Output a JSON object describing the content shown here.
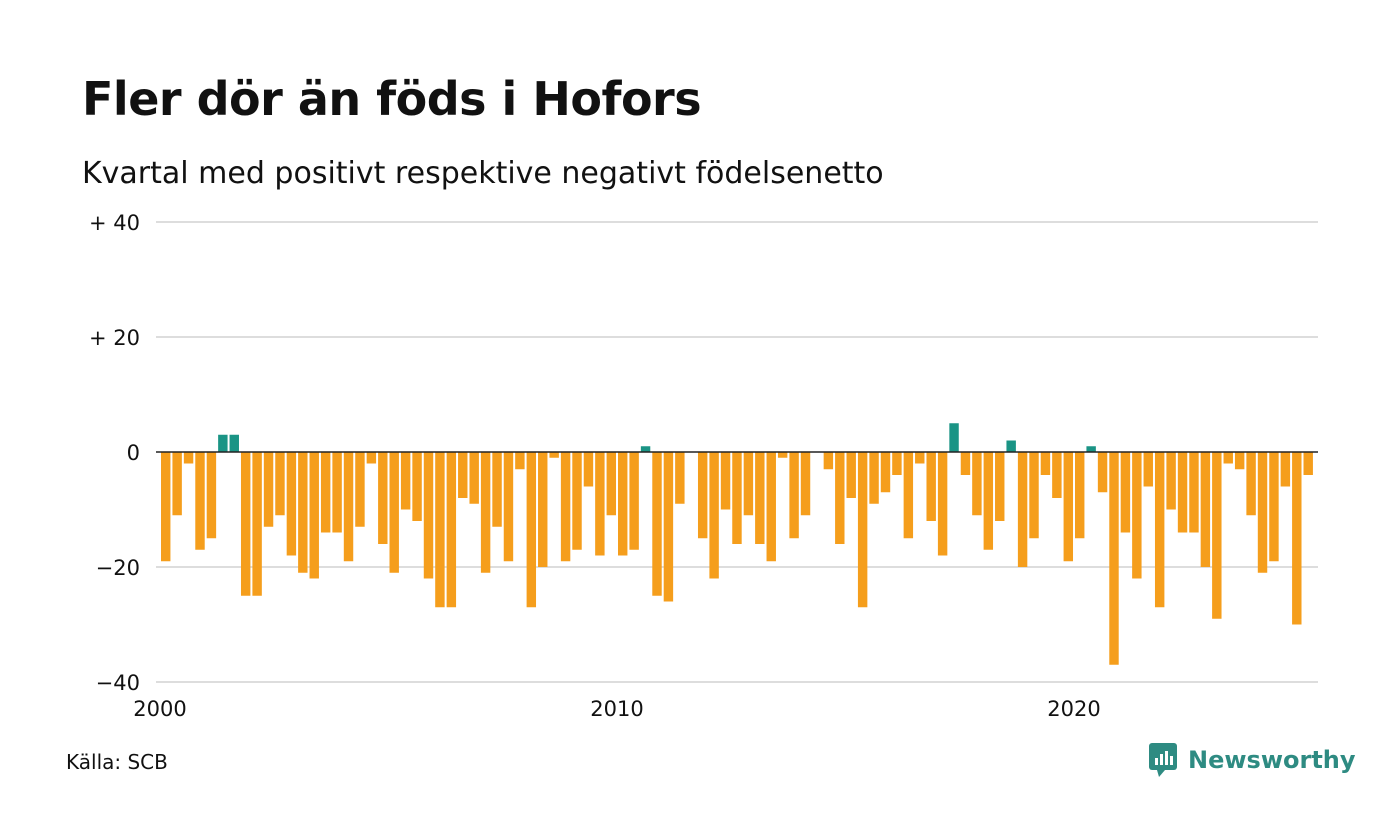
{
  "header": {
    "title": "Fler dör än föds i Hofors",
    "subtitle": "Kvartal med positivt respektive negativt födelsenetto"
  },
  "footer": {
    "source": "Källa: SCB",
    "logo_text": "Newsworthy"
  },
  "colors": {
    "positive": "#1a9485",
    "negative": "#f59e1c",
    "grid": "#dddddd",
    "zero_line": "#222222",
    "logo": "#2e8b82"
  },
  "chart_data": {
    "type": "bar",
    "title": "Fler dör än föds i Hofors",
    "subtitle": "Kvartal med positivt respektive negativt födelsenetto",
    "ylim": [
      -40,
      40
    ],
    "y_ticks": [
      {
        "value": 40,
        "label": "+ 40"
      },
      {
        "value": 20,
        "label": "+ 20"
      },
      {
        "value": 0,
        "label": "0"
      },
      {
        "value": -20,
        "label": "−20"
      },
      {
        "value": -40,
        "label": "−40"
      }
    ],
    "x_ticks": [
      {
        "year": 2000,
        "label": "2000"
      },
      {
        "year": 2010,
        "label": "2010"
      },
      {
        "year": 2020,
        "label": "2020"
      }
    ],
    "start_quarter": "2000 Q1",
    "frequency": "quarterly",
    "grid": true,
    "values": [
      -19,
      -11,
      -2,
      -17,
      -15,
      3,
      3,
      -25,
      -25,
      -13,
      -11,
      -18,
      -21,
      -22,
      -14,
      -14,
      -19,
      -13,
      -2,
      -16,
      -21,
      -10,
      -12,
      -22,
      -27,
      -27,
      -8,
      -9,
      -21,
      -13,
      -19,
      -3,
      -27,
      -20,
      -1,
      -19,
      -17,
      -6,
      -18,
      -11,
      -18,
      -17,
      1,
      -25,
      -26,
      -9,
      0,
      -15,
      -22,
      -10,
      -16,
      -11,
      -16,
      -19,
      -1,
      -15,
      -11,
      0,
      -3,
      -16,
      -8,
      -27,
      -9,
      -7,
      -4,
      -15,
      -2,
      -12,
      -18,
      5,
      -4,
      -11,
      -17,
      -12,
      2,
      -20,
      -15,
      -4,
      -8,
      -19,
      -15,
      1,
      -7,
      -37,
      -14,
      -22,
      -6,
      -27,
      -10,
      -14,
      -14,
      -20,
      -29,
      -2,
      -3,
      -11,
      -21,
      -19,
      -6,
      -30,
      -4
    ]
  }
}
